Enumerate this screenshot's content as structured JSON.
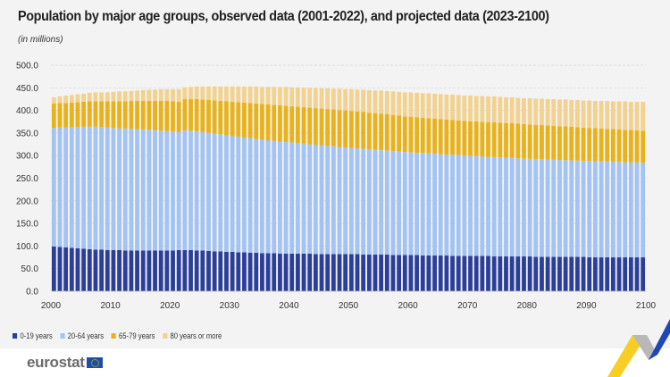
{
  "chart_data": {
    "type": "bar",
    "stacked": true,
    "title": "Population by major age groups, observed data (2001-2022), and projected data (2023-2100)",
    "subtitle": "(in millions)",
    "xlabel": "",
    "ylabel": "",
    "ylim": [
      0,
      500
    ],
    "yticks": [
      "0.0",
      "50.0",
      "100.0",
      "150.0",
      "200.0",
      "250.0",
      "300.0",
      "350.0",
      "400.0",
      "450.0",
      "500.0"
    ],
    "xticks": [
      "2000",
      "2010",
      "2020",
      "2030",
      "2040",
      "2050",
      "2060",
      "2070",
      "2080",
      "2090",
      "2100"
    ],
    "x_start": 2001,
    "x_end": 2100,
    "grid": true,
    "legend_position": "bottom-left",
    "series": [
      {
        "name": "0-19 years",
        "color": "#2b3f99",
        "values": [
          99,
          98,
          97,
          96,
          95,
          94,
          93,
          92,
          92,
          91,
          91,
          91,
          90,
          90,
          90,
          90,
          90,
          90,
          90,
          90,
          90,
          91,
          91,
          91,
          90,
          90,
          89,
          88,
          88,
          87,
          87,
          86,
          86,
          85,
          85,
          84,
          84,
          84,
          83,
          83,
          83,
          83,
          83,
          83,
          82,
          82,
          82,
          82,
          82,
          82,
          82,
          82,
          81,
          81,
          81,
          81,
          81,
          80,
          80,
          80,
          80,
          80,
          79,
          79,
          79,
          79,
          79,
          78,
          78,
          78,
          78,
          78,
          78,
          78,
          77,
          77,
          77,
          77,
          77,
          77,
          77,
          76,
          76,
          76,
          76,
          76,
          76,
          76,
          76,
          76,
          75,
          75,
          75,
          75,
          75,
          75,
          75,
          75,
          75,
          75
        ]
      },
      {
        "name": "20-64 years",
        "color": "#a3c3f2",
        "values": [
          262,
          264,
          265,
          267,
          268,
          270,
          271,
          272,
          271,
          271,
          270,
          269,
          270,
          269,
          268,
          268,
          267,
          266,
          265,
          264,
          263,
          261,
          265,
          264,
          264,
          262,
          261,
          261,
          259,
          258,
          256,
          256,
          254,
          254,
          252,
          252,
          250,
          249,
          248,
          247,
          246,
          245,
          244,
          242,
          242,
          241,
          240,
          239,
          237,
          236,
          235,
          234,
          234,
          233,
          232,
          231,
          230,
          230,
          229,
          228,
          227,
          226,
          227,
          226,
          225,
          224,
          223,
          224,
          223,
          222,
          221,
          221,
          220,
          219,
          220,
          219,
          218,
          218,
          217,
          216,
          216,
          216,
          216,
          215,
          215,
          214,
          214,
          213,
          213,
          212,
          213,
          212,
          212,
          212,
          211,
          211,
          210,
          210,
          210,
          209
        ]
      },
      {
        "name": "65-79 years",
        "color": "#e8b31a",
        "values": [
          54,
          54,
          54,
          54,
          55,
          55,
          56,
          56,
          57,
          58,
          59,
          60,
          60,
          62,
          63,
          63,
          64,
          65,
          66,
          67,
          67,
          67,
          69,
          70,
          71,
          72,
          73,
          73,
          74,
          75,
          76,
          76,
          77,
          77,
          78,
          78,
          79,
          79,
          80,
          80,
          80,
          80,
          80,
          81,
          81,
          81,
          81,
          81,
          82,
          82,
          82,
          82,
          82,
          81,
          81,
          81,
          81,
          80,
          80,
          79,
          79,
          79,
          78,
          78,
          78,
          78,
          78,
          77,
          77,
          77,
          77,
          77,
          77,
          77,
          77,
          77,
          77,
          77,
          77,
          77,
          76,
          76,
          76,
          76,
          75,
          75,
          75,
          75,
          74,
          74,
          73,
          74,
          73,
          72,
          73,
          72,
          72,
          72,
          71,
          71
        ]
      },
      {
        "name": "80 years or more",
        "color": "#f1d290",
        "values": [
          14,
          15,
          17,
          17,
          18,
          18,
          19,
          20,
          20,
          20,
          21,
          22,
          22,
          22,
          23,
          24,
          25,
          25,
          26,
          26,
          27,
          28,
          26,
          27,
          28,
          29,
          30,
          31,
          32,
          33,
          34,
          35,
          36,
          37,
          38,
          38,
          39,
          40,
          41,
          42,
          42,
          43,
          43,
          44,
          45,
          45,
          46,
          46,
          47,
          47,
          48,
          48,
          49,
          50,
          50,
          51,
          51,
          52,
          52,
          53,
          54,
          54,
          54,
          55,
          55,
          55,
          55,
          56,
          56,
          56,
          57,
          56,
          57,
          57,
          57,
          57,
          57,
          57,
          57,
          57,
          58,
          58,
          58,
          58,
          59,
          59,
          59,
          59,
          60,
          60,
          61,
          60,
          61,
          62,
          61,
          62,
          63,
          62,
          63,
          64
        ]
      }
    ]
  },
  "branding": {
    "logo_text": "eurostat"
  }
}
